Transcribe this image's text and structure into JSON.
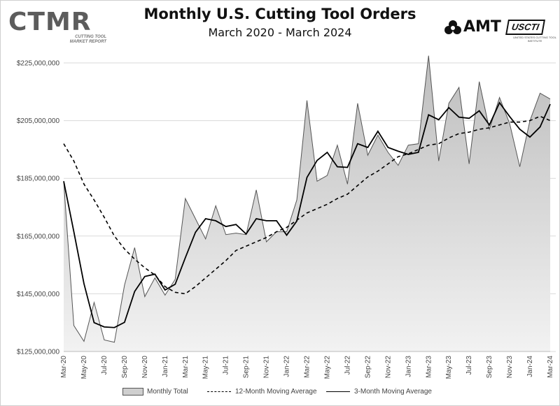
{
  "header": {
    "title": "Monthly U.S. Cutting Tool Orders",
    "subtitle": "March 2020 - March 2024"
  },
  "logos": {
    "left_word": "CTMR",
    "left_sub_line1": "CUTTING TOOL",
    "left_sub_line2": "MARKET REPORT",
    "right_amt": "AMT",
    "right_usctl": "USCTI",
    "right_usctl_sub": "UNITED STATES CUTTING TOOL INSTITUTE"
  },
  "legend": {
    "monthly_total": "Monthly Total",
    "ma12": "12-Month Moving Average",
    "ma3": "3-Month Moving Average"
  },
  "colors": {
    "area_fill_top": "#bdbdbd",
    "area_fill_bottom": "#f2f2f2",
    "area_stroke": "#555555",
    "line": "#000000",
    "grid": "#d9d9d9"
  },
  "chart_data": {
    "type": "area",
    "x": [
      "Mar-20",
      "Apr-20",
      "May-20",
      "Jun-20",
      "Jul-20",
      "Aug-20",
      "Sep-20",
      "Oct-20",
      "Nov-20",
      "Dec-20",
      "Jan-21",
      "Feb-21",
      "Mar-21",
      "Apr-21",
      "May-21",
      "Jun-21",
      "Jul-21",
      "Aug-21",
      "Sep-21",
      "Oct-21",
      "Nov-21",
      "Dec-21",
      "Jan-22",
      "Feb-22",
      "Mar-22",
      "Apr-22",
      "May-22",
      "Jun-22",
      "Jul-22",
      "Aug-22",
      "Sep-22",
      "Oct-22",
      "Nov-22",
      "Dec-22",
      "Jan-23",
      "Feb-23",
      "Mar-23",
      "Apr-23",
      "May-23",
      "Jun-23",
      "Jul-23",
      "Aug-23",
      "Sep-23",
      "Oct-23",
      "Nov-23",
      "Dec-23",
      "Jan-24",
      "Feb-24",
      "Mar-24"
    ],
    "tick_labels": [
      "Mar-20",
      "May-20",
      "Jul-20",
      "Sep-20",
      "Nov-20",
      "Jan-21",
      "Mar-21",
      "May-21",
      "Jul-21",
      "Sep-21",
      "Nov-21",
      "Jan-22",
      "Mar-22",
      "May-22",
      "Jul-22",
      "Sep-22",
      "Nov-22",
      "Jan-23",
      "Mar-23",
      "May-23",
      "Jul-23",
      "Sep-23",
      "Nov-23",
      "Jan-24",
      "Mar-24"
    ],
    "series": [
      {
        "name": "Monthly Total",
        "kind": "area",
        "values": [
          184000000,
          134000000,
          128500000,
          142000000,
          129000000,
          128200000,
          148000000,
          161000000,
          144000000,
          150500000,
          144500000,
          150000000,
          178000000,
          171000000,
          164000000,
          175500000,
          165500000,
          166000000,
          165500000,
          181000000,
          163000000,
          166500000,
          166500000,
          177500000,
          212000000,
          184000000,
          186000000,
          196500000,
          183000000,
          211000000,
          193000000,
          200000000,
          194000000,
          189500000,
          196500000,
          197000000,
          227500000,
          191000000,
          211000000,
          216500000,
          190000000,
          218500000,
          202000000,
          213000000,
          204000000,
          189000000,
          205000000,
          214500000,
          212500000
        ]
      },
      {
        "name": "12-Month Moving Average",
        "kind": "dashed-line",
        "values": [
          197000000,
          191000000,
          183000000,
          177500000,
          171500000,
          165000000,
          160500000,
          157000000,
          154000000,
          151500000,
          147500000,
          145500000,
          145000000,
          147500000,
          150500000,
          153500000,
          156500000,
          160000000,
          161500000,
          163000000,
          164500000,
          166500000,
          168000000,
          170500000,
          173000000,
          174500000,
          176000000,
          178000000,
          179500000,
          182500000,
          185500000,
          187500000,
          190000000,
          192500000,
          193500000,
          195000000,
          196500000,
          197000000,
          199000000,
          200500000,
          201000000,
          202000000,
          202500000,
          203500000,
          204500000,
          204500000,
          205000000,
          206500000,
          205000000
        ]
      },
      {
        "name": "3-Month Moving Average",
        "kind": "line",
        "values": [
          184000000,
          166500000,
          148500000,
          135000000,
          133500000,
          133300000,
          135100000,
          145800000,
          151000000,
          151800000,
          146300000,
          148300000,
          157500000,
          166300000,
          171000000,
          170300000,
          168300000,
          169000000,
          165700000,
          171000000,
          170300000,
          170300000,
          165300000,
          170200000,
          185300000,
          191200000,
          194000000,
          189000000,
          188800000,
          197000000,
          195700000,
          201300000,
          195700000,
          194400000,
          193300000,
          194000000,
          207000000,
          205300000,
          209500000,
          206200000,
          205800000,
          208400000,
          203500000,
          211200000,
          206400000,
          202000000,
          199300000,
          202800000,
          210700000
        ]
      }
    ],
    "ylabel": "",
    "xlabel": "",
    "ylim": [
      125000000,
      225000000
    ],
    "yticks": [
      "$125,000,000",
      "$145,000,000",
      "$165,000,000",
      "$185,000,000",
      "$205,000,000",
      "$225,000,000"
    ],
    "ytick_values": [
      125000000,
      145000000,
      165000000,
      185000000,
      205000000,
      225000000
    ],
    "grid": "horizontal",
    "legend_position": "bottom"
  }
}
